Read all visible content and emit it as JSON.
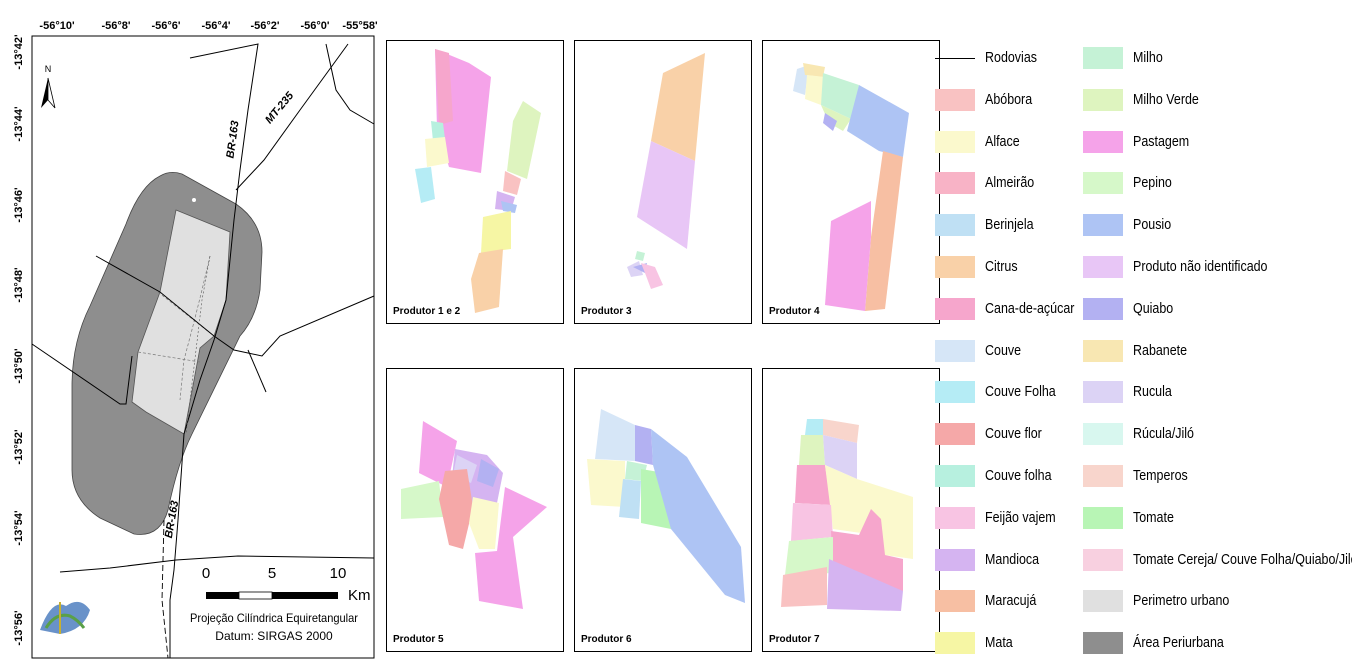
{
  "main_map": {
    "top_ticks": [
      "-56°10'",
      "-56°8'",
      "-56°6'",
      "-56°4'",
      "-56°2'",
      "-56°0'",
      "-55°58'"
    ],
    "left_ticks": [
      "-13°42'",
      "-13°44'",
      "-13°46'",
      "-13°48'",
      "-13°50'",
      "-13°52'",
      "-13°54'",
      "-13°56'"
    ],
    "north": "N",
    "roads": [
      "BR-163",
      "MT-235",
      "BR-163"
    ],
    "scalebar": {
      "ticks": [
        "0",
        "5",
        "10"
      ],
      "unit": "Km"
    },
    "projection": "Projeção Cilíndrica Equiretangular",
    "datum": "Datum: SIRGAS 2000",
    "colors": {
      "periurban": "#8e8e8e",
      "urban": "#e0e0e0"
    }
  },
  "panels": [
    {
      "label": "Produtor 1 e 2"
    },
    {
      "label": "Produtor 3"
    },
    {
      "label": "Produtor 4"
    },
    {
      "label": "Produtor 5"
    },
    {
      "label": "Produtor 6"
    },
    {
      "label": "Produtor 7"
    }
  ],
  "legend": {
    "col1": [
      {
        "label": "Rodovias",
        "type": "line",
        "color": "#000000"
      },
      {
        "label": "Abóbora",
        "color": "#f9c2c2"
      },
      {
        "label": "Alface",
        "color": "#fbf9cd"
      },
      {
        "label": "Almeirão",
        "color": "#f8b3c6"
      },
      {
        "label": "Berinjela",
        "color": "#bfe0f4"
      },
      {
        "label": "Citrus",
        "color": "#f9d1a8"
      },
      {
        "label": "Cana-de-açúcar",
        "color": "#f6a6cc"
      },
      {
        "label": "Couve",
        "color": "#d6e6f7"
      },
      {
        "label": "Couve Folha",
        "color": "#b5ecf5"
      },
      {
        "label": "Couve flor",
        "color": "#f5a8a8"
      },
      {
        "label": "Couve folha",
        "color": "#b7f0df"
      },
      {
        "label": "Feijão vajem",
        "color": "#f8c4e3"
      },
      {
        "label": "Mandioca",
        "color": "#d5b4f1"
      },
      {
        "label": "Maracujá",
        "color": "#f7bfa3"
      },
      {
        "label": "Mata",
        "color": "#f6f6a4"
      }
    ],
    "col2": [
      {
        "label": "Milho",
        "color": "#c5f2d6"
      },
      {
        "label": "Milho Verde",
        "color": "#def4bf"
      },
      {
        "label": "Pastagem",
        "color": "#f5a3e9"
      },
      {
        "label": "Pepino",
        "color": "#d6f8c9"
      },
      {
        "label": "Pousio",
        "color": "#aec4f4"
      },
      {
        "label": "Produto não identificado",
        "color": "#e8c6f6"
      },
      {
        "label": "Quiabo",
        "color": "#b3b1f2"
      },
      {
        "label": "Rabanete",
        "color": "#f8e7b2"
      },
      {
        "label": "Rucula",
        "color": "#dcd3f5"
      },
      {
        "label": "Rúcula/Jiló",
        "color": "#d8f7ef"
      },
      {
        "label": "Temperos",
        "color": "#f8d5cc"
      },
      {
        "label": "Tomate",
        "color": "#b8f5b5"
      },
      {
        "label": "Tomate Cereja/ Couve Folha/Quiabo/Jiló",
        "color": "#f8d0e0"
      },
      {
        "label": "Perimetro urbano",
        "color": "#e0e0e0"
      },
      {
        "label": "Área Periurbana",
        "color": "#8e8e8e"
      }
    ]
  }
}
